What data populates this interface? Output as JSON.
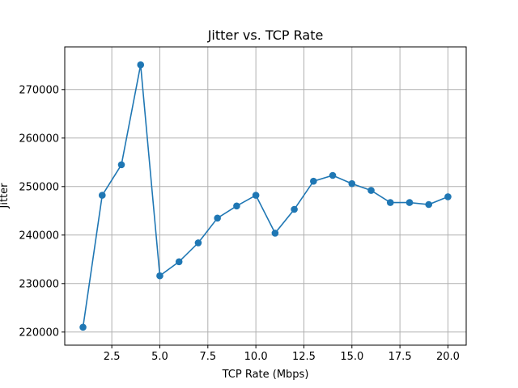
{
  "chart_data": {
    "type": "line",
    "title": "Jitter vs. TCP Rate",
    "xlabel": "TCP Rate (Mbps)",
    "ylabel": "Jitter",
    "xlim": [
      0.05,
      20.95
    ],
    "ylim": [
      217300,
      278800
    ],
    "xticks": [
      2.5,
      5.0,
      7.5,
      10.0,
      12.5,
      15.0,
      17.5,
      20.0
    ],
    "xtick_labels": [
      "2.5",
      "5.0",
      "7.5",
      "10.0",
      "12.5",
      "15.0",
      "17.5",
      "20.0"
    ],
    "yticks": [
      220000,
      230000,
      240000,
      250000,
      260000,
      270000
    ],
    "ytick_labels": [
      "220000",
      "230000",
      "240000",
      "250000",
      "260000",
      "270000"
    ],
    "grid": true,
    "color": "#1f77b4",
    "marker": "circle",
    "series": [
      {
        "x": [
          1,
          2,
          3,
          4,
          5,
          6,
          7,
          8,
          9,
          10,
          11,
          12,
          13,
          14,
          15,
          16,
          17,
          18,
          19,
          20
        ],
        "y": [
          221000,
          248200,
          254500,
          275100,
          231600,
          234500,
          238400,
          243500,
          246000,
          248200,
          240400,
          245300,
          251100,
          252300,
          250600,
          249200,
          246700,
          246700,
          246300,
          247900
        ]
      }
    ]
  }
}
